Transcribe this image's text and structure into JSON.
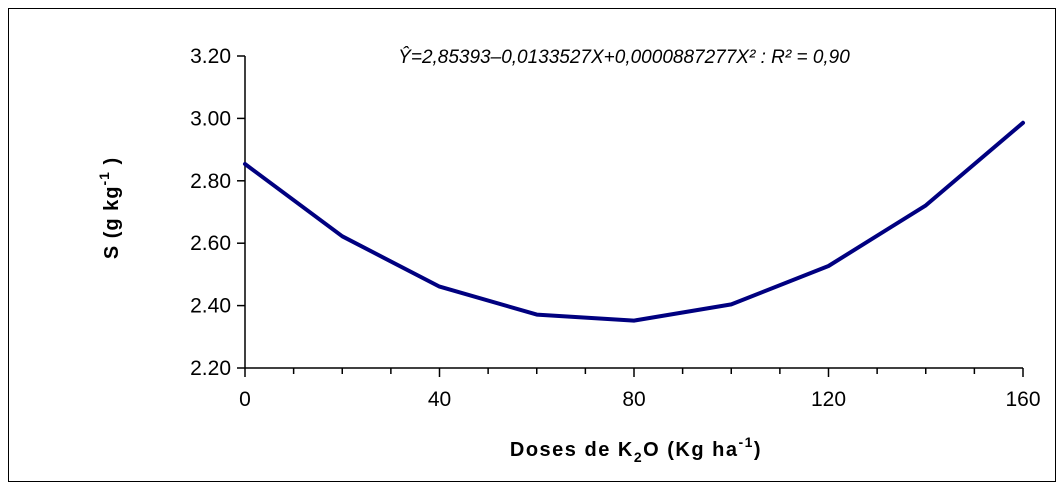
{
  "chart_data": {
    "type": "line",
    "equation": "Ŷ=2,85393–0,0133527X+0,0000887277X² : R² = 0,90",
    "xlabel": {
      "main": "Doses de K",
      "sub": "2",
      "mid": "O (Kg ha",
      "sup": "-1",
      "end": ")"
    },
    "ylabel": {
      "main": "S (g kg",
      "sup": "-1",
      "end": " )"
    },
    "xlim": [
      0,
      160
    ],
    "ylim": [
      2.2,
      3.2
    ],
    "x_ticks": [
      "0",
      "40",
      "80",
      "120",
      "160"
    ],
    "y_ticks": [
      "2.20",
      "2.40",
      "2.60",
      "2.80",
      "3.00",
      "3.20"
    ],
    "grid": false,
    "series": [
      {
        "color": "#000080",
        "x": [
          0,
          20,
          40,
          60,
          80,
          100,
          120,
          140,
          160
        ],
        "y": [
          2.854,
          2.622,
          2.461,
          2.371,
          2.352,
          2.404,
          2.527,
          2.721,
          2.986
        ]
      }
    ]
  }
}
